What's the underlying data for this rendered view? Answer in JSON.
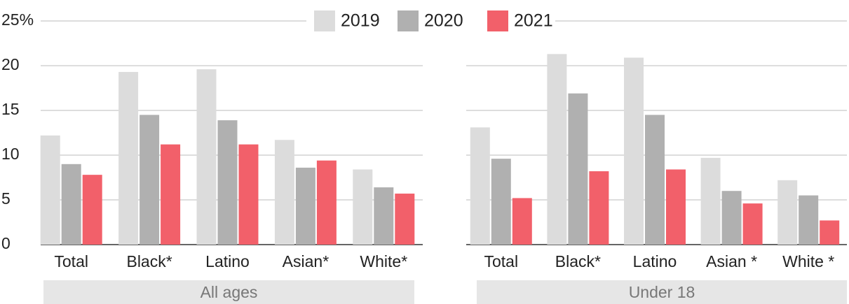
{
  "chart_data": [
    {
      "type": "bar",
      "group_label": "All ages",
      "categories": [
        "Total",
        "Black*",
        "Latino",
        "Asian*",
        "White*"
      ],
      "series": [
        {
          "name": "2019",
          "color": "#dcdcdc",
          "values": [
            12.2,
            19.3,
            19.6,
            11.7,
            8.4
          ]
        },
        {
          "name": "2020",
          "color": "#b0b0b0",
          "values": [
            9.0,
            14.5,
            13.9,
            8.6,
            6.4
          ]
        },
        {
          "name": "2021",
          "color": "#f2606a",
          "values": [
            7.8,
            11.2,
            11.2,
            9.4,
            5.7
          ]
        }
      ],
      "ylim": [
        0,
        25
      ],
      "yticks": [
        0,
        5,
        10,
        15,
        20,
        {
          "value": 25,
          "label": "25%"
        }
      ],
      "grid": true
    },
    {
      "type": "bar",
      "group_label": "Under 18",
      "categories": [
        "Total",
        "Black*",
        "Latino",
        "Asian *",
        "White *"
      ],
      "series": [
        {
          "name": "2019",
          "color": "#dcdcdc",
          "values": [
            13.1,
            21.3,
            20.9,
            9.7,
            7.2
          ]
        },
        {
          "name": "2020",
          "color": "#b0b0b0",
          "values": [
            9.6,
            16.9,
            14.5,
            6.0,
            5.5
          ]
        },
        {
          "name": "2021",
          "color": "#f2606a",
          "values": [
            5.2,
            8.2,
            8.4,
            4.6,
            2.7
          ]
        }
      ],
      "ylim": [
        0,
        25
      ],
      "yticks": [
        0,
        5,
        10,
        15,
        20,
        25
      ],
      "grid": true
    }
  ]
}
